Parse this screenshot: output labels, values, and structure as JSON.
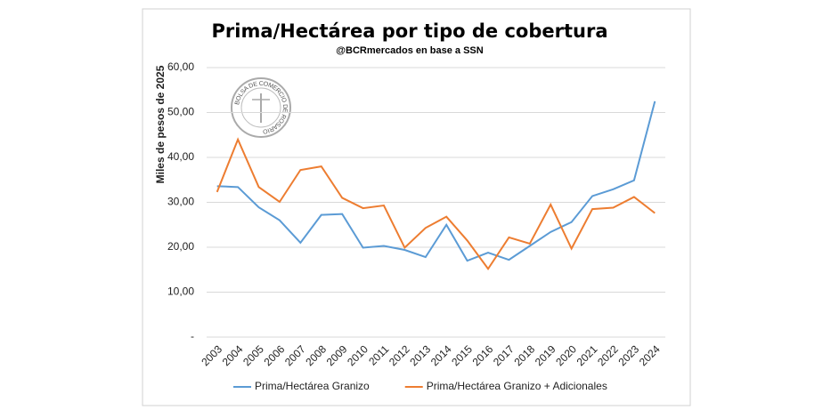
{
  "chart_data": {
    "type": "line",
    "title": "Prima/Hectárea por tipo de cobertura",
    "subtitle": "@BCRmercados en base a SSN",
    "y_label": "Miles de pesos de 2025",
    "watermark": "BOLSA DE COMERCIO DE ROSARIO",
    "categories": [
      "2003",
      "2004",
      "2005",
      "2006",
      "2007",
      "2008",
      "2009",
      "2010",
      "2011",
      "2012",
      "2013",
      "2014",
      "2015",
      "2016",
      "2017",
      "2018",
      "2019",
      "2020",
      "2021",
      "2022",
      "2023",
      "2024"
    ],
    "series": [
      {
        "name": "Prima/Hectárea Granizo",
        "color": "#5b9bd5",
        "values": [
          33.6,
          33.4,
          28.9,
          26.0,
          21.0,
          27.2,
          27.4,
          19.9,
          20.3,
          19.4,
          17.8,
          25.0,
          17.0,
          18.8,
          17.2,
          20.3,
          23.4,
          25.6,
          31.4,
          32.9,
          34.9,
          52.5
        ]
      },
      {
        "name": "Prima/Hectárea Granizo + Adicionales",
        "color": "#ed7d31",
        "values": [
          32.3,
          44.0,
          33.4,
          30.1,
          37.2,
          38.0,
          31.0,
          28.7,
          29.3,
          19.9,
          24.3,
          26.8,
          21.5,
          15.2,
          22.2,
          20.8,
          29.5,
          19.7,
          28.5,
          28.8,
          31.2,
          27.6
        ]
      }
    ],
    "ylim": [
      0,
      60
    ],
    "yticks": [
      {
        "value": 0,
        "label": "-"
      },
      {
        "value": 10,
        "label": "10,00"
      },
      {
        "value": 20,
        "label": "20,00"
      },
      {
        "value": 30,
        "label": "30,00"
      },
      {
        "value": 40,
        "label": "40,00"
      },
      {
        "value": 50,
        "label": "50,00"
      },
      {
        "value": 60,
        "label": "60,00"
      }
    ],
    "grid": true,
    "legend": "bottom"
  }
}
